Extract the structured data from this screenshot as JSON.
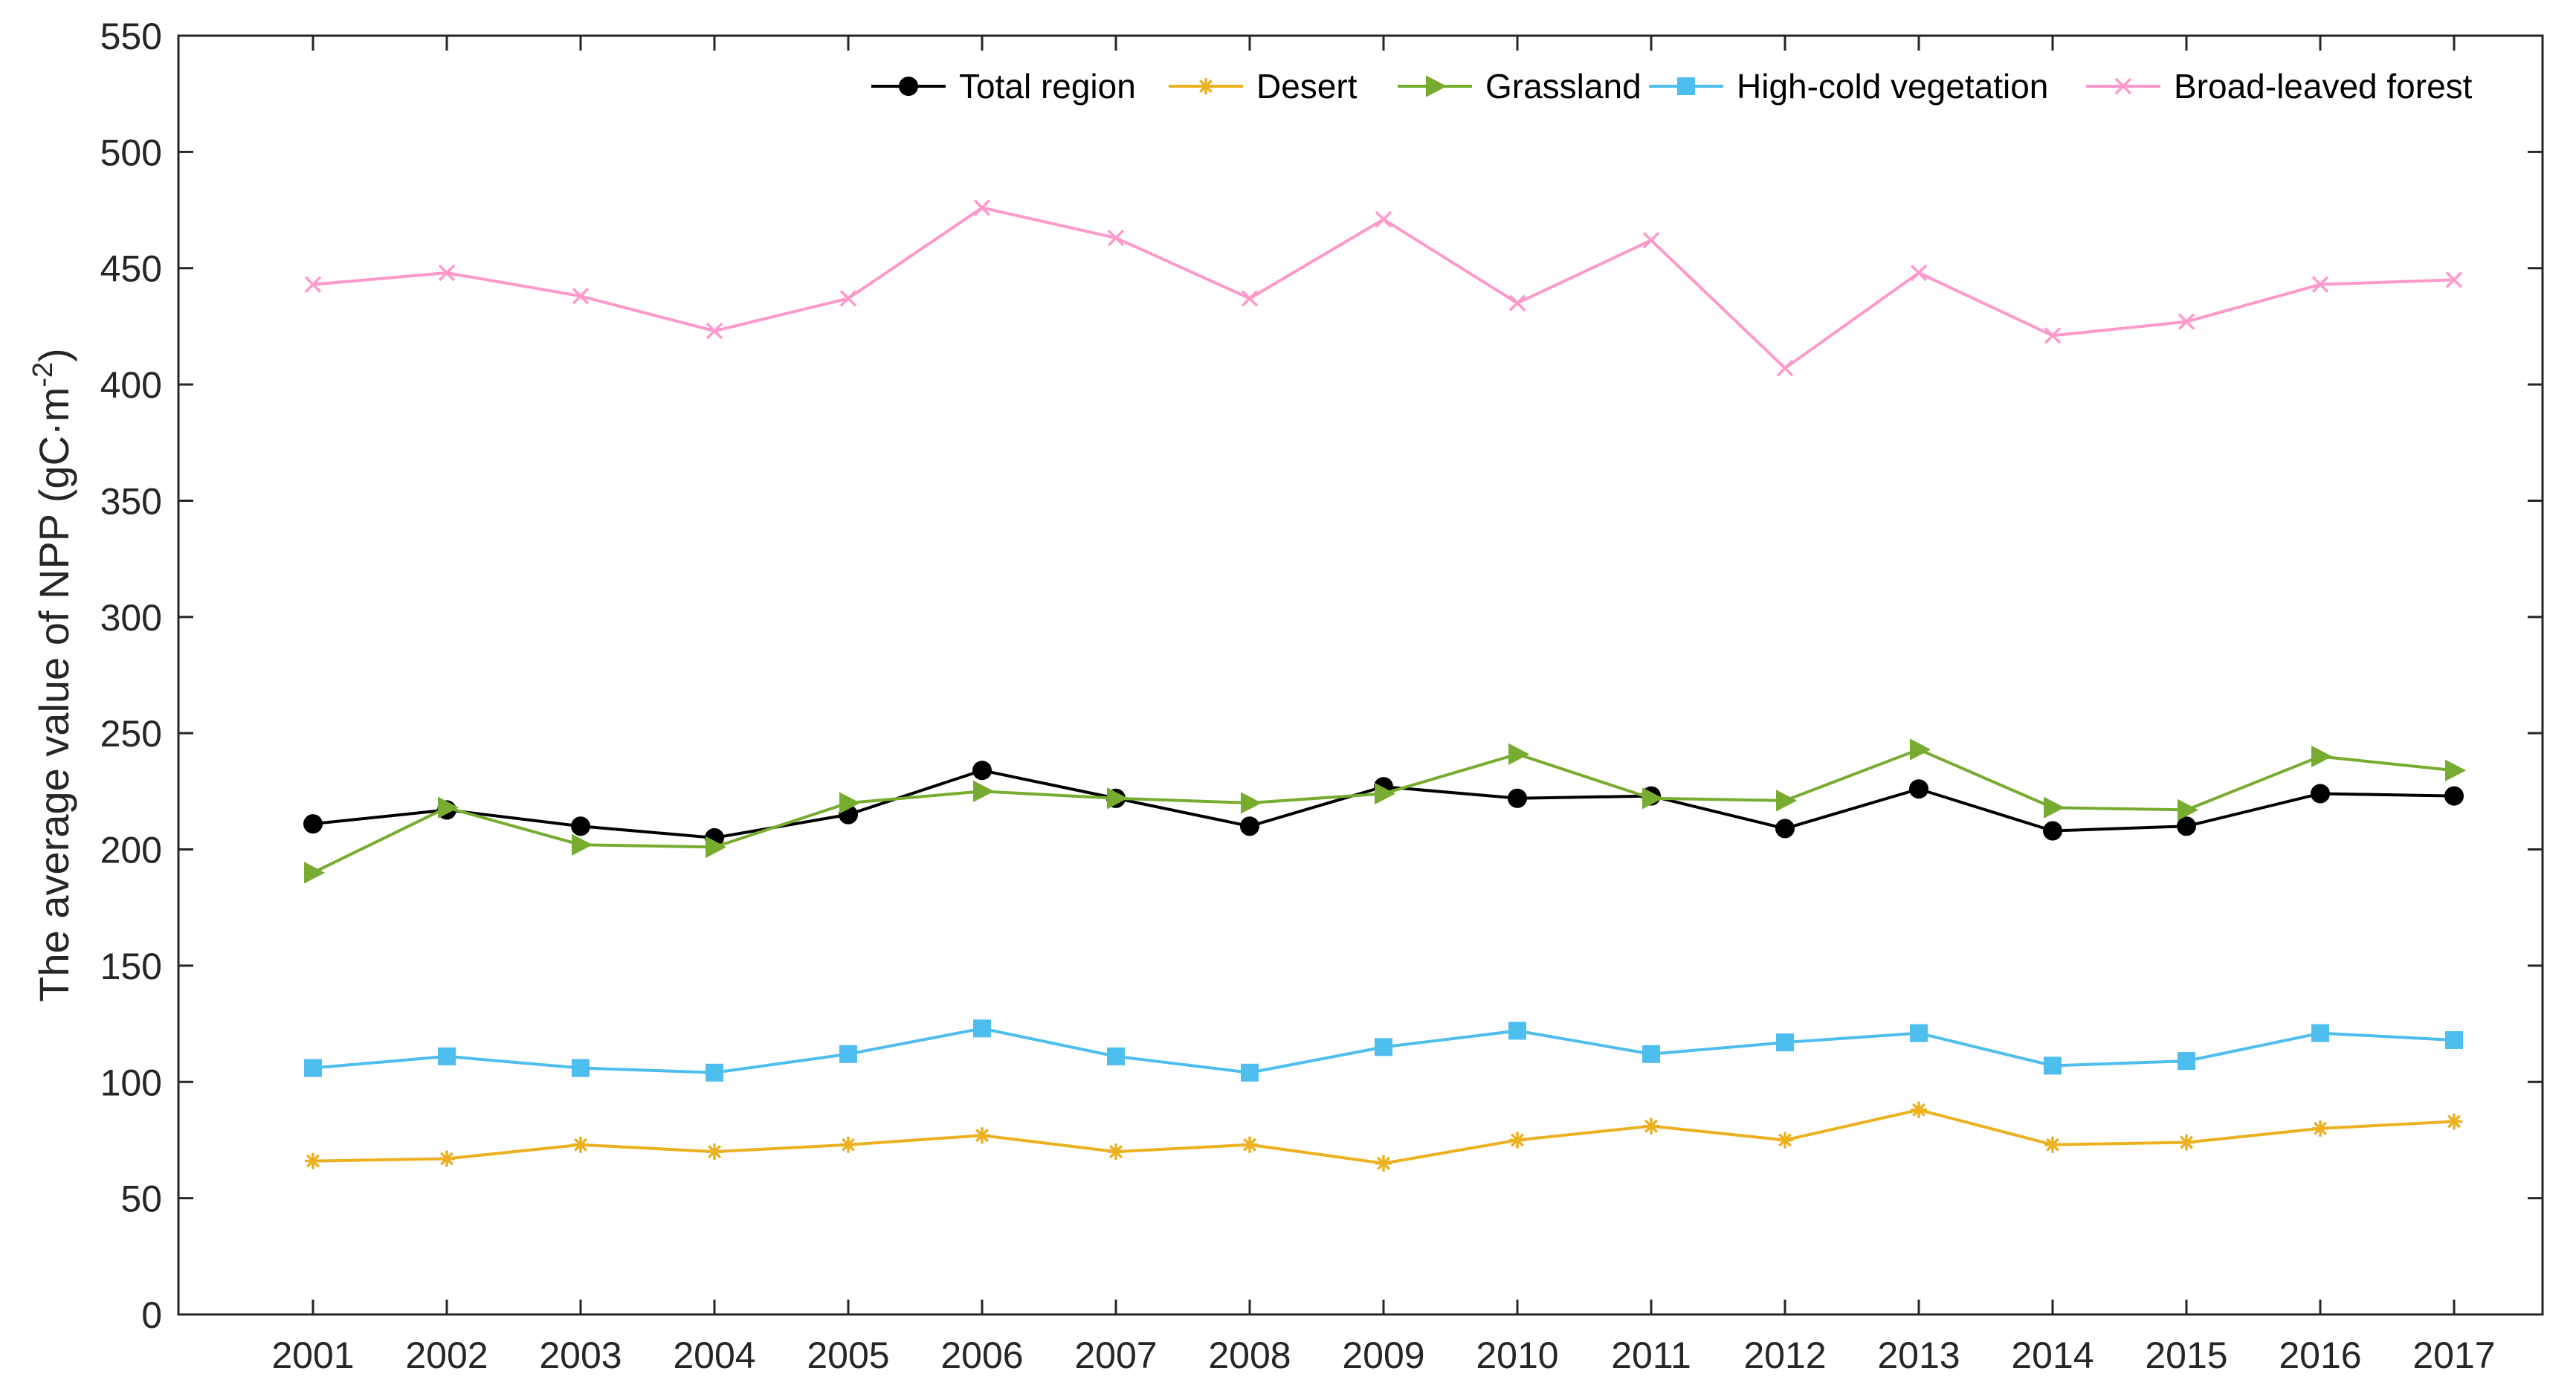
{
  "chart_data": {
    "type": "line",
    "title": "",
    "xlabel": "",
    "ylabel": "The average value of NPP (gC·m",
    "ylabel_superscript": "-2",
    "ylabel_suffix": ")",
    "ylim": [
      0,
      550
    ],
    "yticks": [
      0,
      50,
      100,
      150,
      200,
      250,
      300,
      350,
      400,
      450,
      500,
      550
    ],
    "categories": [
      "2001",
      "2002",
      "2003",
      "2004",
      "2005",
      "2006",
      "2007",
      "2008",
      "2009",
      "2010",
      "2011",
      "2012",
      "2013",
      "2014",
      "2015",
      "2016",
      "2017"
    ],
    "grid": false,
    "legend_position": "top-right",
    "series": [
      {
        "name": "Total region",
        "color": "#000000",
        "marker": "circle",
        "values": [
          211,
          217,
          210,
          205,
          215,
          234,
          222,
          210,
          227,
          222,
          223,
          209,
          226,
          208,
          210,
          224,
          223
        ]
      },
      {
        "name": "Desert",
        "color": "#EDB120",
        "marker": "asterisk",
        "values": [
          66,
          67,
          73,
          70,
          73,
          77,
          70,
          73,
          65,
          75,
          81,
          75,
          88,
          73,
          74,
          80,
          83
        ]
      },
      {
        "name": "Grassland",
        "color": "#77AC30",
        "marker": "triangle-right",
        "values": [
          190,
          218,
          202,
          201,
          220,
          225,
          222,
          220,
          224,
          241,
          222,
          221,
          243,
          218,
          217,
          240,
          234
        ]
      },
      {
        "name": "High-cold vegetation",
        "color": "#4DBEEE",
        "marker": "square",
        "values": [
          106,
          111,
          106,
          104,
          112,
          123,
          111,
          104,
          115,
          122,
          112,
          117,
          121,
          107,
          109,
          121,
          118
        ]
      },
      {
        "name": "Broad-leaved forest",
        "color": "#FF99CC",
        "marker": "x",
        "values": [
          443,
          448,
          438,
          423,
          437,
          476,
          463,
          437,
          471,
          435,
          462,
          407,
          448,
          421,
          427,
          443,
          445
        ]
      }
    ]
  }
}
